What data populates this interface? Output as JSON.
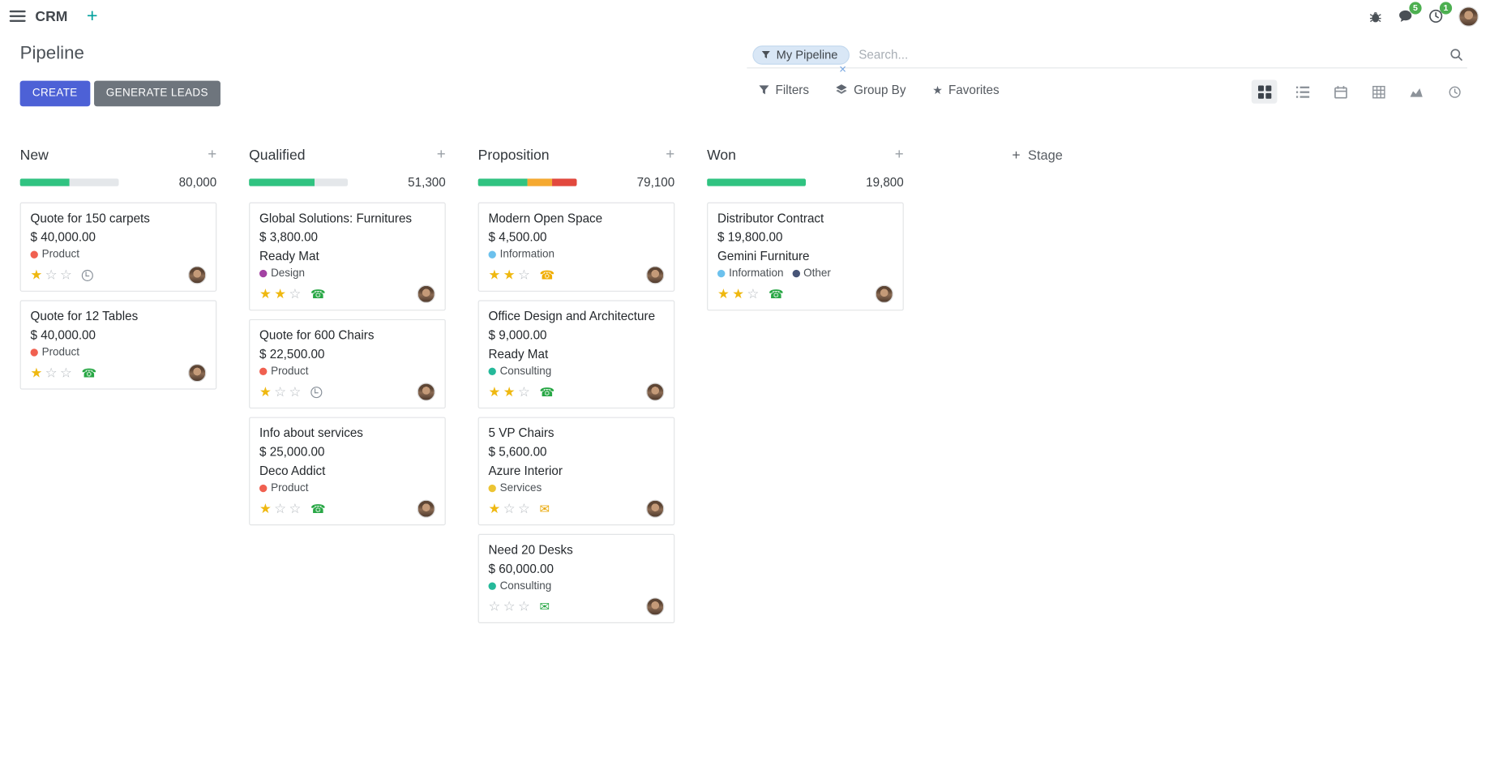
{
  "navbar": {
    "app_name": "CRM",
    "messages_badge": "5",
    "activities_badge": "1"
  },
  "page": {
    "title": "Pipeline"
  },
  "search": {
    "facet_label": "My Pipeline",
    "remove_label": "×",
    "placeholder": "Search..."
  },
  "control_panel": {
    "create_label": "CREATE",
    "generate_leads_label": "GENERATE LEADS",
    "filters_label": "Filters",
    "group_by_label": "Group By",
    "favorites_label": "Favorites"
  },
  "view_switcher": {
    "active": "kanban",
    "views": [
      "kanban",
      "list",
      "calendar",
      "pivot",
      "graph",
      "activity"
    ]
  },
  "appearance": {
    "primary_button_bg": "#4d61d6",
    "secondary_button_bg": "#6e757d",
    "navbar_plus_color": "#00a09d",
    "badge_color": "#4caf50",
    "facet_bg": "#d9e7f6",
    "star_filled": "#efb810",
    "star_empty": "#b4b9be",
    "progress": {
      "success": "#30c381",
      "warning": "#f5a930",
      "danger": "#e2483d",
      "track": "#e4e7ea"
    }
  },
  "board": {
    "add_stage_label": "Stage",
    "columns": [
      {
        "name": "New",
        "total": "80,000",
        "segments": [
          {
            "type": "success",
            "pct": 50
          }
        ],
        "cards": [
          {
            "title": "Quote for 150 carpets",
            "amount": "$ 40,000.00",
            "tags": [
              {
                "label": "Product",
                "color": "#f06050"
              }
            ],
            "stars": 1,
            "activity": {
              "type": "clock",
              "color": "#878f98"
            }
          },
          {
            "title": "Quote for 12 Tables",
            "amount": "$ 40,000.00",
            "tags": [
              {
                "label": "Product",
                "color": "#f06050"
              }
            ],
            "stars": 1,
            "activity": {
              "type": "phone",
              "color": "#28a745"
            }
          }
        ]
      },
      {
        "name": "Qualified",
        "total": "51,300",
        "segments": [
          {
            "type": "success",
            "pct": 66
          }
        ],
        "cards": [
          {
            "title": "Global Solutions: Furnitures",
            "amount": "$ 3,800.00",
            "partner": "Ready Mat",
            "tags": [
              {
                "label": "Design",
                "color": "#a342a3"
              }
            ],
            "stars": 2,
            "activity": {
              "type": "phone",
              "color": "#28a745"
            }
          },
          {
            "title": "Quote for 600 Chairs",
            "amount": "$ 22,500.00",
            "tags": [
              {
                "label": "Product",
                "color": "#f06050"
              }
            ],
            "stars": 1,
            "activity": {
              "type": "clock",
              "color": "#878f98"
            }
          },
          {
            "title": "Info about services",
            "amount": "$ 25,000.00",
            "partner": "Deco Addict",
            "tags": [
              {
                "label": "Product",
                "color": "#f06050"
              }
            ],
            "stars": 1,
            "activity": {
              "type": "phone",
              "color": "#28a745"
            }
          }
        ]
      },
      {
        "name": "Proposition",
        "total": "79,100",
        "segments": [
          {
            "type": "success",
            "pct": 50
          },
          {
            "type": "warning",
            "pct": 25
          },
          {
            "type": "danger",
            "pct": 25
          }
        ],
        "cards": [
          {
            "title": "Modern Open Space",
            "amount": "$ 4,500.00",
            "tags": [
              {
                "label": "Information",
                "color": "#6cc1ed"
              }
            ],
            "stars": 2,
            "activity": {
              "type": "phone",
              "color": "#f0ad00"
            }
          },
          {
            "title": "Office Design and Architecture",
            "amount": "$ 9,000.00",
            "partner": "Ready Mat",
            "tags": [
              {
                "label": "Consulting",
                "color": "#25b99a"
              }
            ],
            "stars": 2,
            "activity": {
              "type": "phone",
              "color": "#28a745"
            }
          },
          {
            "title": "5 VP Chairs",
            "amount": "$ 5,600.00",
            "partner": "Azure Interior",
            "tags": [
              {
                "label": "Services",
                "color": "#ecc433"
              }
            ],
            "stars": 1,
            "activity": {
              "type": "mail",
              "color": "#e8a502"
            }
          },
          {
            "title": "Need 20 Desks",
            "amount": "$ 60,000.00",
            "tags": [
              {
                "label": "Consulting",
                "color": "#25b99a"
              }
            ],
            "stars": 0,
            "activity": {
              "type": "mail",
              "color": "#28a745"
            }
          }
        ]
      },
      {
        "name": "Won",
        "total": "19,800",
        "segments": [
          {
            "type": "success",
            "pct": 100
          }
        ],
        "cards": [
          {
            "title": "Distributor Contract",
            "amount": "$ 19,800.00",
            "partner": "Gemini Furniture",
            "tags": [
              {
                "label": "Information",
                "color": "#6cc1ed"
              },
              {
                "label": "Other",
                "color": "#475577"
              }
            ],
            "stars": 2,
            "activity": {
              "type": "phone",
              "color": "#28a745"
            }
          }
        ]
      }
    ]
  }
}
